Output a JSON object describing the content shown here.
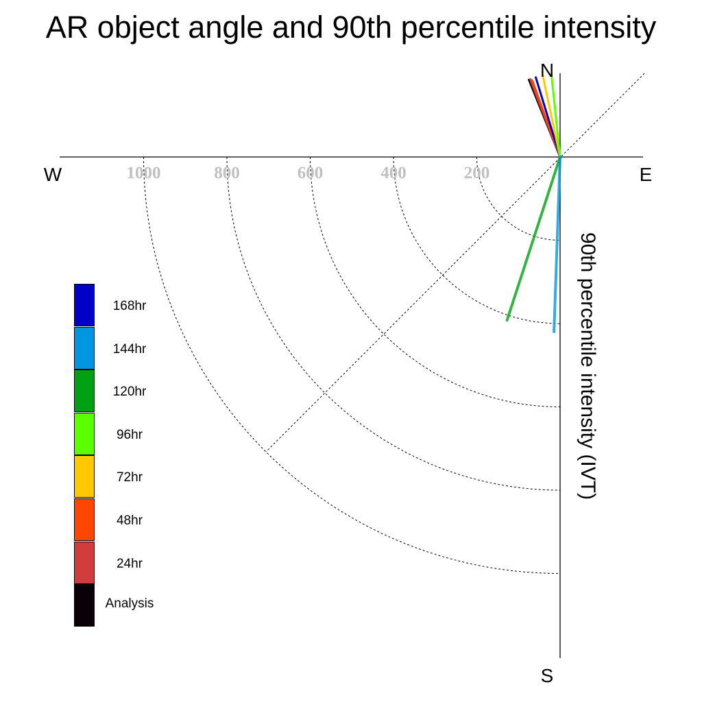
{
  "chart_data": {
    "type": "polar-line",
    "title": "AR object angle and 90th percentile intensity",
    "radial_label": "90th percentile intensity (IVT)",
    "directions": {
      "north": "N",
      "south": "S",
      "east": "E",
      "west": "W"
    },
    "radial_ticks": [
      200,
      400,
      600,
      800,
      1000
    ],
    "radial_max": 1200,
    "grid": true,
    "legend_placement": "left",
    "legend": [
      {
        "label": "168hr",
        "color": "#0000c8"
      },
      {
        "label": "144hr",
        "color": "#0096e1"
      },
      {
        "label": "120hr",
        "color": "#00a014"
      },
      {
        "label": "96hr",
        "color": "#5aff00"
      },
      {
        "label": "72hr",
        "color": "#ffc800"
      },
      {
        "label": "48hr",
        "color": "#ff4600"
      },
      {
        "label": "24hr",
        "color": "#d23c3c"
      },
      {
        "label": "Analysis",
        "color": "#0a0008"
      }
    ],
    "series": [
      {
        "name": "Analysis",
        "color": "#0a0008",
        "angle_deg": -22,
        "intensity": 200
      },
      {
        "name": "24hr",
        "color": "#d23c3c",
        "angle_deg": -21,
        "intensity": 200
      },
      {
        "name": "48hr",
        "color": "#ff4600",
        "angle_deg": -20,
        "intensity": 196
      },
      {
        "name": "168hr",
        "color": "#0000c8",
        "angle_deg": -17,
        "intensity": 200
      },
      {
        "name": "72hr",
        "color": "#ffc800",
        "angle_deg": -12,
        "intensity": 200
      },
      {
        "name": "96hr",
        "color": "#5aff00",
        "angle_deg": -6,
        "intensity": 200
      },
      {
        "name": "120hr",
        "color": "#00a014",
        "angle_deg": 198,
        "intensity": 412
      },
      {
        "name": "144hr",
        "color": "#0096e1",
        "angle_deg": 182,
        "intensity": 420
      }
    ]
  }
}
